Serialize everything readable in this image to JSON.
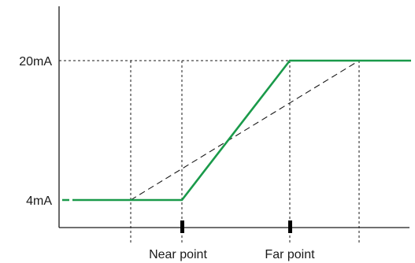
{
  "y_labels": {
    "high": "20mA",
    "low": "4mA"
  },
  "x_labels": {
    "near": "Near point",
    "far": "Far point"
  },
  "colors": {
    "output_line": "#1a9a4a",
    "axes": "#1a1a1a",
    "guides": "#1a1a1a",
    "markers": "#000000"
  }
}
